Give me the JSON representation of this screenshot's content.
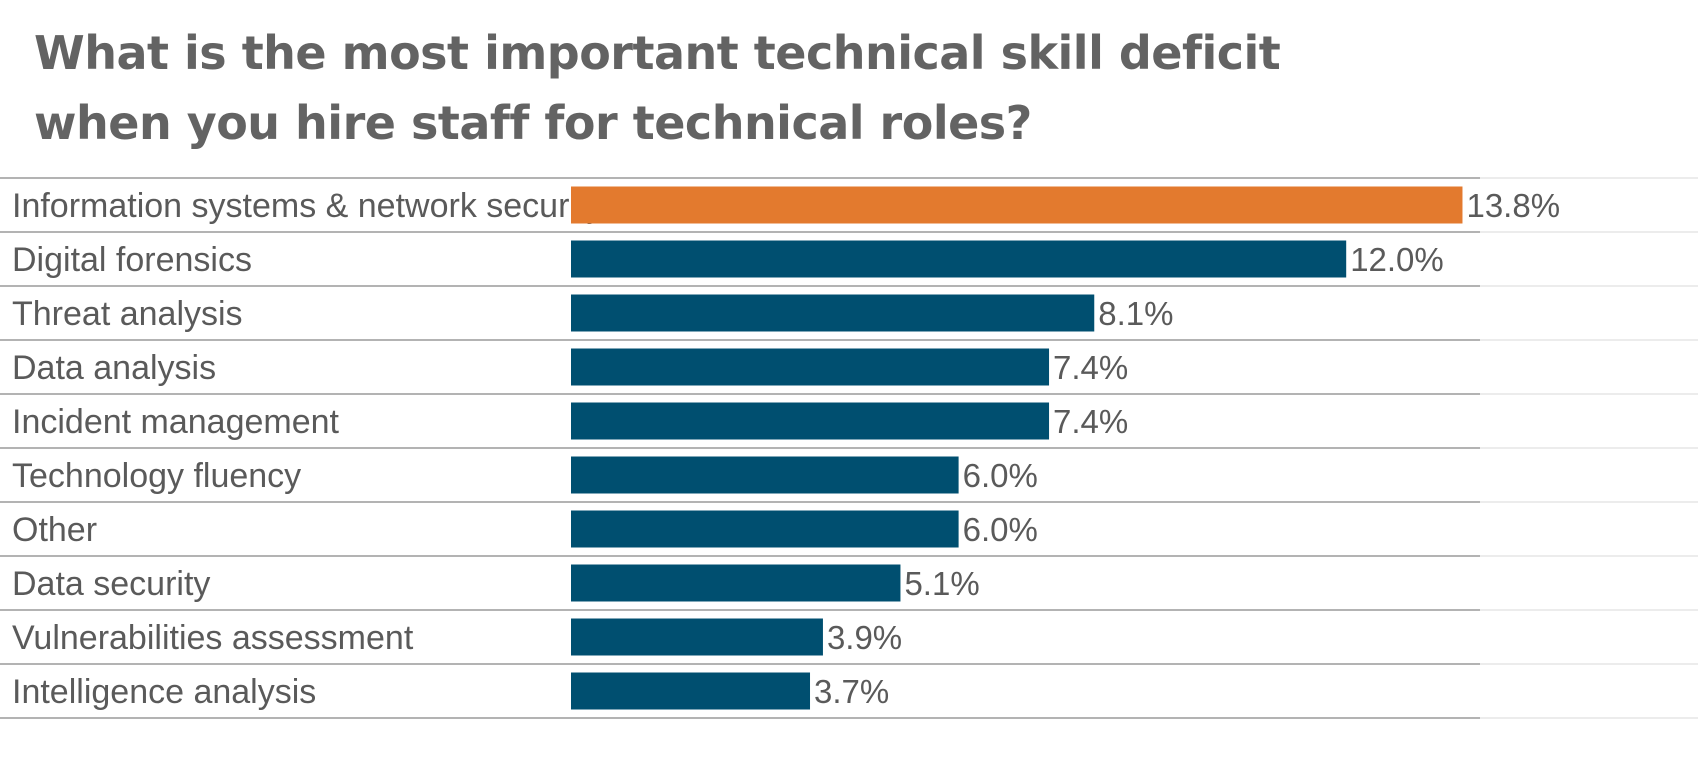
{
  "title_line1": "What is the most important technical skill deficit",
  "title_line2": "when you hire staff for technical roles?",
  "chart_data": {
    "type": "bar",
    "orientation": "horizontal",
    "title": "What is the most important technical skill deficit when you hire staff for technical roles?",
    "categories": [
      "Information systems & network security",
      "Digital forensics",
      "Threat analysis",
      "Data analysis",
      "Incident management",
      "Technology fluency",
      "Other",
      "Data security",
      "Vulnerabilities assessment",
      "Intelligence analysis"
    ],
    "values": [
      13.8,
      12.0,
      8.1,
      7.4,
      7.4,
      6.0,
      6.0,
      5.1,
      3.9,
      3.7
    ],
    "value_labels": [
      "13.8%",
      "12.0%",
      "8.1%",
      "7.4%",
      "7.4%",
      "6.0%",
      "6.0%",
      "5.1%",
      "3.9%",
      "3.7%"
    ],
    "highlight_index": 0,
    "colors": {
      "highlight": "#e37a2e",
      "default": "#004f70"
    },
    "grid": false,
    "legend": "none",
    "xlabel": "",
    "ylabel": ""
  }
}
